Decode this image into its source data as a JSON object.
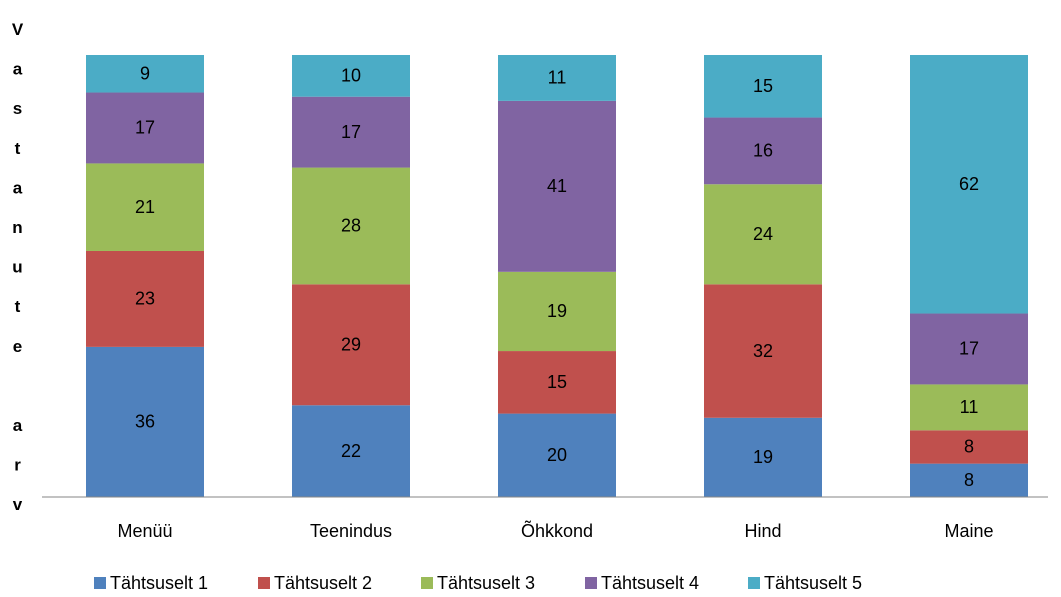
{
  "chart_data": {
    "type": "stacked_bar",
    "y_label": "Vastanute arv",
    "categories": [
      "Menüü",
      "Teenindus",
      "Õhkkond",
      "Hind",
      "Maine"
    ],
    "series": [
      {
        "name": "Tähtsuselt 1",
        "color": "#4f81bd",
        "values": [
          36,
          22,
          20,
          19,
          8
        ]
      },
      {
        "name": "Tähtsuselt 2",
        "color": "#c0504d",
        "values": [
          23,
          29,
          15,
          32,
          8
        ]
      },
      {
        "name": "Tähtsuselt 3",
        "color": "#9bbb59",
        "values": [
          21,
          28,
          19,
          24,
          11
        ]
      },
      {
        "name": "Tähtsuselt 4",
        "color": "#8064a2",
        "values": [
          17,
          17,
          41,
          16,
          17
        ]
      },
      {
        "name": "Tähtsuselt 5",
        "color": "#4bacc6",
        "values": [
          9,
          10,
          11,
          15,
          62
        ]
      }
    ],
    "ylim": [
      0,
      106
    ],
    "legend": "bottom"
  }
}
